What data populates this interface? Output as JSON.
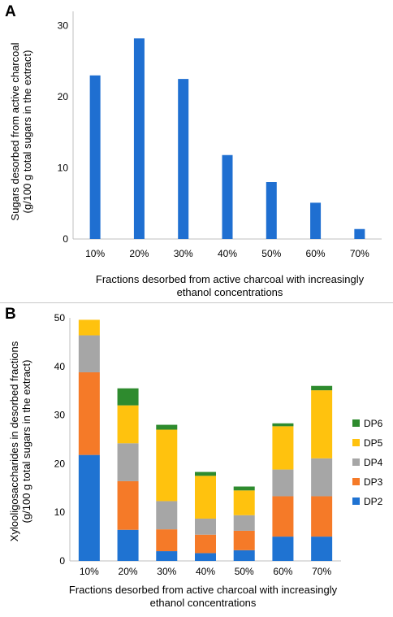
{
  "chart_data": [
    {
      "type": "bar",
      "panel_label": "A",
      "categories": [
        "10%",
        "20%",
        "30%",
        "40%",
        "50%",
        "60%",
        "70%"
      ],
      "values": [
        23,
        28.2,
        22.5,
        11.8,
        8,
        5.1,
        1.4
      ],
      "ylabel_lines": [
        "Sugars  desorbed from active charcoal",
        "(g/100  g total sugars in the extract)"
      ],
      "xlabel_lines": [
        "Fractions desorbed from active charcoal with increasingly",
        "ethanol concentrations"
      ],
      "yticks": [
        0,
        10,
        20,
        30
      ],
      "ylim": [
        0,
        32
      ],
      "color": "#1f6fd1",
      "grid": false
    },
    {
      "type": "bar",
      "stacked": true,
      "panel_label": "B",
      "categories": [
        "10%",
        "20%",
        "30%",
        "40%",
        "50%",
        "60%",
        "70%"
      ],
      "series": [
        {
          "name": "DP2",
          "color": "#1f73d2",
          "values": [
            21.8,
            6.4,
            2.0,
            1.6,
            2.2,
            5.0,
            5.0
          ]
        },
        {
          "name": "DP3",
          "color": "#f57a28",
          "values": [
            17.0,
            10.0,
            4.5,
            3.8,
            4.0,
            8.3,
            8.3
          ]
        },
        {
          "name": "DP4",
          "color": "#a6a6a6",
          "values": [
            7.6,
            7.8,
            5.8,
            3.3,
            3.2,
            5.5,
            7.8
          ]
        },
        {
          "name": "DP5",
          "color": "#ffc20e",
          "values": [
            3.2,
            7.8,
            14.7,
            8.8,
            5.1,
            8.9,
            14.0
          ]
        },
        {
          "name": "DP6",
          "color": "#2e8b2e",
          "values": [
            0,
            3.5,
            1.0,
            0.8,
            0.8,
            0.6,
            0.9
          ]
        }
      ],
      "legend_order": [
        "DP6",
        "DP5",
        "DP4",
        "DP3",
        "DP2"
      ],
      "ylabel_lines": [
        "Xylooligosaccharides  in desorbed fractions",
        "(g/100  g total sugars in the extract)"
      ],
      "xlabel_lines": [
        "Fractions desorbed from active charcoal with increasingly",
        "ethanol concentrations"
      ],
      "yticks": [
        0,
        10,
        20,
        30,
        40,
        50
      ],
      "ylim": [
        0,
        50
      ],
      "legend_position": "right",
      "grid": false
    }
  ]
}
